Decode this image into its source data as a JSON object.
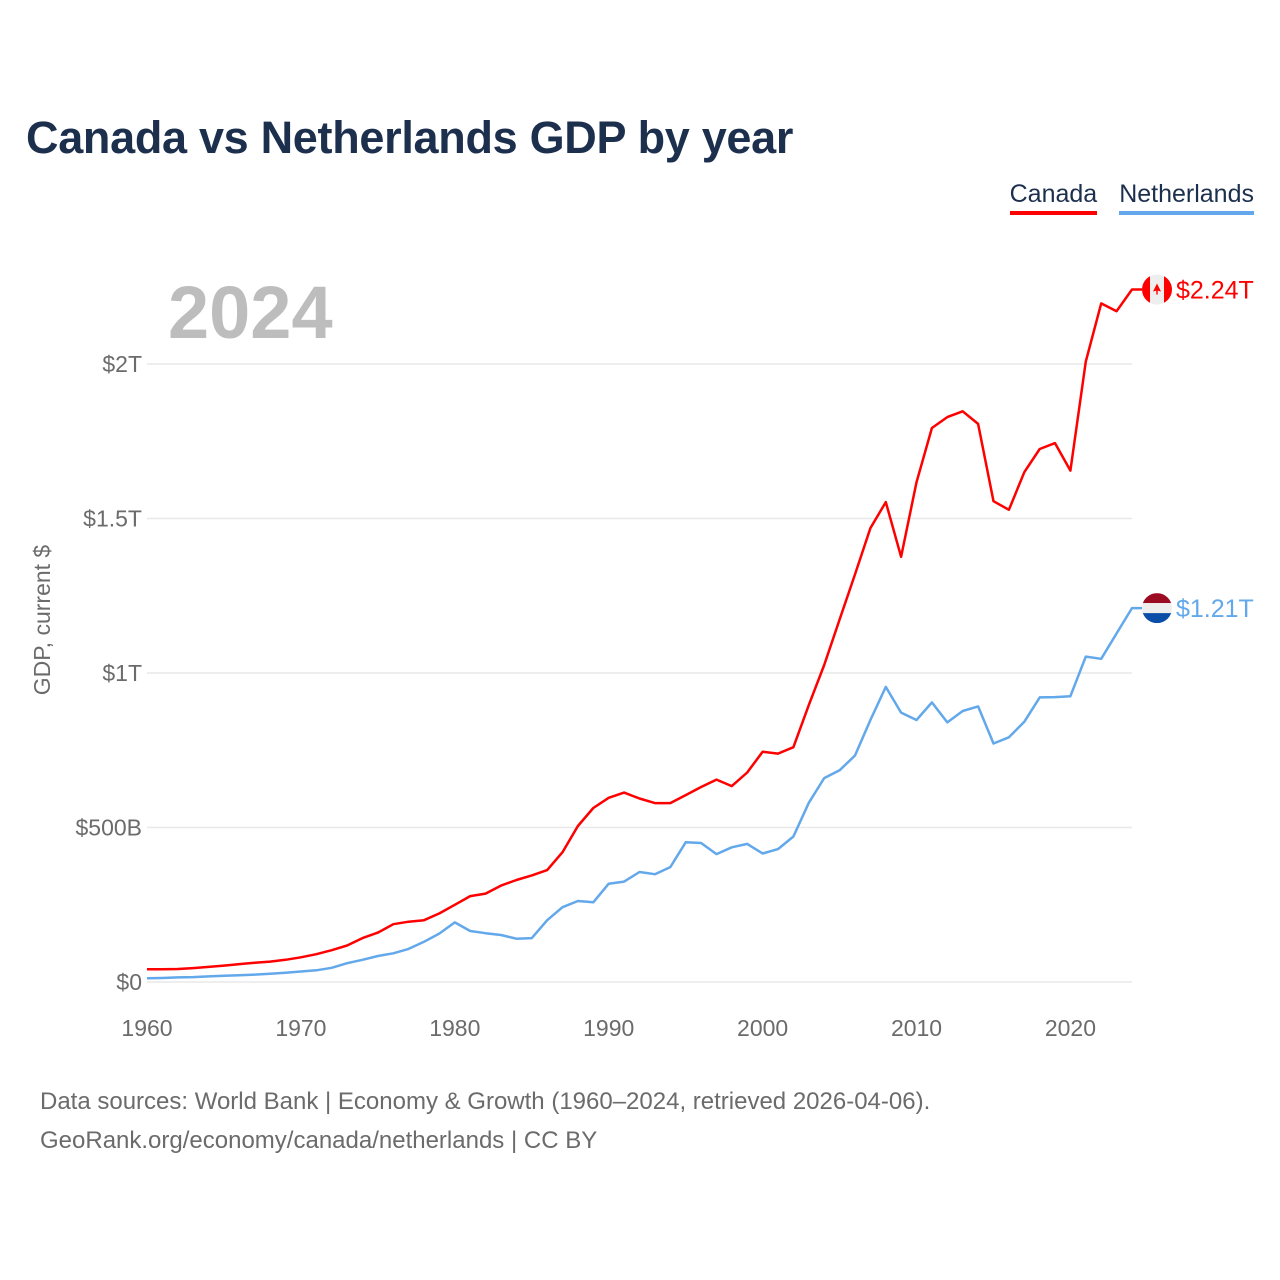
{
  "title": "Canada vs Netherlands GDP by year",
  "legend": [
    {
      "label": "Canada",
      "color": "#ff0000"
    },
    {
      "label": "Netherlands",
      "color": "#62a8ea"
    }
  ],
  "year_display": "2024",
  "footer": {
    "line1": "Data sources: World Bank | Economy & Growth (1960–2024, retrieved 2026-04-06).",
    "line2": "GeoRank.org/economy/canada/netherlands | CC BY"
  },
  "chart_data": {
    "type": "line",
    "title": "Canada vs Netherlands GDP by year",
    "xlabel": "",
    "ylabel": "GDP, current $",
    "xlim": [
      1960,
      2024
    ],
    "ylim": [
      0,
      2000
    ],
    "units": "billions USD",
    "x_ticks": [
      1960,
      1970,
      1980,
      1990,
      2000,
      2010,
      2020
    ],
    "x_tick_labels": [
      "1960",
      "1970",
      "1980",
      "1990",
      "2000",
      "2010",
      "2020"
    ],
    "y_ticks": [
      0,
      500,
      1000,
      1500,
      2000
    ],
    "y_tick_labels": [
      "$0",
      "$500B",
      "$1T",
      "$1.5T",
      "$2T"
    ],
    "grid": true,
    "legend_position": "top-right",
    "x": [
      1960,
      1961,
      1962,
      1963,
      1964,
      1965,
      1966,
      1967,
      1968,
      1969,
      1970,
      1971,
      1972,
      1973,
      1974,
      1975,
      1976,
      1977,
      1978,
      1979,
      1980,
      1981,
      1982,
      1983,
      1984,
      1985,
      1986,
      1987,
      1988,
      1989,
      1990,
      1991,
      1992,
      1993,
      1994,
      1995,
      1996,
      1997,
      1998,
      1999,
      2000,
      2001,
      2002,
      2003,
      2004,
      2005,
      2006,
      2007,
      2008,
      2009,
      2010,
      2011,
      2012,
      2013,
      2014,
      2015,
      2016,
      2017,
      2018,
      2019,
      2020,
      2021,
      2022,
      2023,
      2024
    ],
    "series": [
      {
        "name": "Canada",
        "color": "#ff0000",
        "end_label": "$2.24T",
        "values": [
          41,
          41,
          42,
          45,
          49,
          53,
          58,
          62,
          66,
          72,
          80,
          90,
          103,
          118,
          142,
          160,
          187,
          195,
          200,
          222,
          250,
          278,
          286,
          312,
          330,
          345,
          362,
          420,
          505,
          563,
          596,
          613,
          594,
          579,
          579,
          605,
          631,
          655,
          634,
          678,
          745,
          739,
          760,
          896,
          1026,
          1173,
          1319,
          1469,
          1553,
          1376,
          1617,
          1793,
          1828,
          1847,
          1806,
          1556,
          1528,
          1650,
          1725,
          1744,
          1655,
          2008,
          2196,
          2171,
          2241
        ]
      },
      {
        "name": "Netherlands",
        "color": "#62a8ea",
        "end_label": "$1.21T",
        "values": [
          12,
          13,
          15,
          16,
          18,
          20,
          22,
          24,
          27,
          30,
          34,
          38,
          46,
          61,
          72,
          84,
          93,
          107,
          130,
          157,
          193,
          165,
          158,
          152,
          140,
          142,
          200,
          242,
          262,
          258,
          318,
          325,
          356,
          349,
          372,
          452,
          450,
          414,
          436,
          447,
          416,
          430,
          471,
          580,
          660,
          685,
          733,
          848,
          955,
          872,
          848,
          905,
          840,
          877,
          892,
          772,
          792,
          842,
          921,
          922,
          925,
          1053,
          1046,
          1128,
          1210
        ]
      }
    ]
  }
}
